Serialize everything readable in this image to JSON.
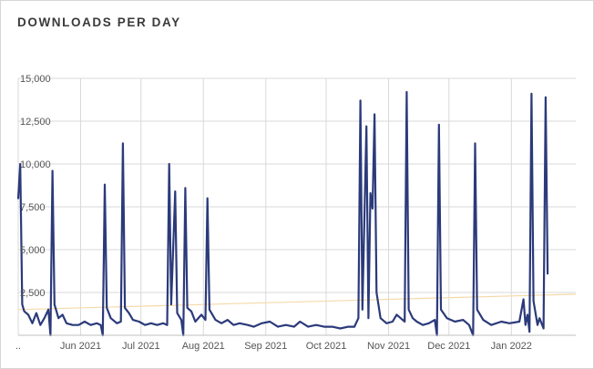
{
  "title": "DOWNLOADS PER DAY",
  "chart_data": {
    "type": "line",
    "title": "DOWNLOADS PER DAY",
    "xlabel": "",
    "ylabel": "",
    "x_range": [
      "2021-05-01",
      "2022-02-02"
    ],
    "ylim": [
      0,
      15000
    ],
    "y_ticks": [
      2500,
      5000,
      7500,
      10000,
      12500,
      15000
    ],
    "y_tick_labels": [
      "2,500",
      "5,000",
      "7,500",
      "10,000",
      "12,500",
      "15,000"
    ],
    "x_ticks": [
      "2021-06-01",
      "2021-07-01",
      "2021-08-01",
      "2021-09-01",
      "2021-10-01",
      "2021-11-01",
      "2021-12-01",
      "2022-01-01"
    ],
    "x_tick_labels": [
      "Jun 2021",
      "Jul 2021",
      "Aug 2021",
      "Sep 2021",
      "Oct 2021",
      "Nov 2021",
      "Dec 2021",
      "Jan 2022"
    ],
    "x_first_label": "..",
    "grid": true,
    "legend": "none",
    "colors": {
      "line": "#2b3a7a",
      "trend": "#f5d9a8",
      "grid": "#d9d9d9"
    },
    "series": [
      {
        "values": [
          [
            "2021-05-01",
            8000
          ],
          [
            "2021-05-02",
            10000
          ],
          [
            "2021-05-03",
            1800
          ],
          [
            "2021-05-04",
            1400
          ],
          [
            "2021-05-06",
            1200
          ],
          [
            "2021-05-08",
            700
          ],
          [
            "2021-05-10",
            1300
          ],
          [
            "2021-05-12",
            600
          ],
          [
            "2021-05-14",
            1000
          ],
          [
            "2021-05-16",
            1500
          ],
          [
            "2021-05-17",
            0
          ],
          [
            "2021-05-18",
            9600
          ],
          [
            "2021-05-19",
            1800
          ],
          [
            "2021-05-21",
            1000
          ],
          [
            "2021-05-23",
            1200
          ],
          [
            "2021-05-25",
            700
          ],
          [
            "2021-05-28",
            600
          ],
          [
            "2021-05-31",
            600
          ],
          [
            "2021-06-03",
            800
          ],
          [
            "2021-06-06",
            600
          ],
          [
            "2021-06-09",
            700
          ],
          [
            "2021-06-11",
            600
          ],
          [
            "2021-06-12",
            0
          ],
          [
            "2021-06-13",
            8800
          ],
          [
            "2021-06-14",
            1600
          ],
          [
            "2021-06-16",
            1000
          ],
          [
            "2021-06-19",
            700
          ],
          [
            "2021-06-21",
            800
          ],
          [
            "2021-06-22",
            11200
          ],
          [
            "2021-06-23",
            1600
          ],
          [
            "2021-06-25",
            1300
          ],
          [
            "2021-06-27",
            900
          ],
          [
            "2021-06-30",
            800
          ],
          [
            "2021-07-03",
            600
          ],
          [
            "2021-07-06",
            700
          ],
          [
            "2021-07-09",
            600
          ],
          [
            "2021-07-12",
            700
          ],
          [
            "2021-07-14",
            600
          ],
          [
            "2021-07-15",
            10000
          ],
          [
            "2021-07-16",
            1800
          ],
          [
            "2021-07-18",
            8400
          ],
          [
            "2021-07-19",
            1300
          ],
          [
            "2021-07-21",
            900
          ],
          [
            "2021-07-22",
            0
          ],
          [
            "2021-07-23",
            8600
          ],
          [
            "2021-07-24",
            1600
          ],
          [
            "2021-07-26",
            1400
          ],
          [
            "2021-07-28",
            800
          ],
          [
            "2021-07-31",
            1200
          ],
          [
            "2021-08-02",
            900
          ],
          [
            "2021-08-03",
            8000
          ],
          [
            "2021-08-04",
            1500
          ],
          [
            "2021-08-07",
            900
          ],
          [
            "2021-08-10",
            700
          ],
          [
            "2021-08-13",
            900
          ],
          [
            "2021-08-16",
            600
          ],
          [
            "2021-08-19",
            700
          ],
          [
            "2021-08-23",
            600
          ],
          [
            "2021-08-26",
            500
          ],
          [
            "2021-08-30",
            700
          ],
          [
            "2021-09-03",
            800
          ],
          [
            "2021-09-07",
            500
          ],
          [
            "2021-09-11",
            600
          ],
          [
            "2021-09-15",
            500
          ],
          [
            "2021-09-18",
            800
          ],
          [
            "2021-09-22",
            500
          ],
          [
            "2021-09-26",
            600
          ],
          [
            "2021-09-30",
            500
          ],
          [
            "2021-10-04",
            500
          ],
          [
            "2021-10-08",
            400
          ],
          [
            "2021-10-12",
            500
          ],
          [
            "2021-10-15",
            500
          ],
          [
            "2021-10-17",
            1000
          ],
          [
            "2021-10-18",
            13700
          ],
          [
            "2021-10-19",
            1500
          ],
          [
            "2021-10-21",
            12200
          ],
          [
            "2021-10-22",
            1000
          ],
          [
            "2021-10-23",
            8300
          ],
          [
            "2021-10-24",
            7400
          ],
          [
            "2021-10-25",
            12900
          ],
          [
            "2021-10-26",
            2500
          ],
          [
            "2021-10-28",
            1000
          ],
          [
            "2021-10-31",
            700
          ],
          [
            "2021-11-03",
            800
          ],
          [
            "2021-11-05",
            1200
          ],
          [
            "2021-11-07",
            1000
          ],
          [
            "2021-11-09",
            800
          ],
          [
            "2021-11-10",
            14200
          ],
          [
            "2021-11-11",
            1500
          ],
          [
            "2021-11-13",
            1000
          ],
          [
            "2021-11-15",
            800
          ],
          [
            "2021-11-18",
            600
          ],
          [
            "2021-11-21",
            700
          ],
          [
            "2021-11-24",
            900
          ],
          [
            "2021-11-25",
            0
          ],
          [
            "2021-11-26",
            12300
          ],
          [
            "2021-11-27",
            1500
          ],
          [
            "2021-11-30",
            1000
          ],
          [
            "2021-12-04",
            800
          ],
          [
            "2021-12-08",
            900
          ],
          [
            "2021-12-11",
            600
          ],
          [
            "2021-12-13",
            0
          ],
          [
            "2021-12-14",
            11200
          ],
          [
            "2021-12-15",
            1500
          ],
          [
            "2021-12-18",
            900
          ],
          [
            "2021-12-22",
            600
          ],
          [
            "2021-12-27",
            800
          ],
          [
            "2021-12-31",
            700
          ],
          [
            "2022-01-05",
            800
          ],
          [
            "2022-01-07",
            2100
          ],
          [
            "2022-01-08",
            600
          ],
          [
            "2022-01-09",
            1200
          ],
          [
            "2022-01-10",
            200
          ],
          [
            "2022-01-11",
            14100
          ],
          [
            "2022-01-12",
            2000
          ],
          [
            "2022-01-14",
            600
          ],
          [
            "2022-01-15",
            1000
          ],
          [
            "2022-01-17",
            400
          ],
          [
            "2022-01-18",
            13900
          ],
          [
            "2022-01-19",
            3600
          ]
        ]
      }
    ],
    "trend": [
      [
        "2021-05-01",
        1500
      ],
      [
        "2022-02-02",
        2400
      ]
    ]
  }
}
